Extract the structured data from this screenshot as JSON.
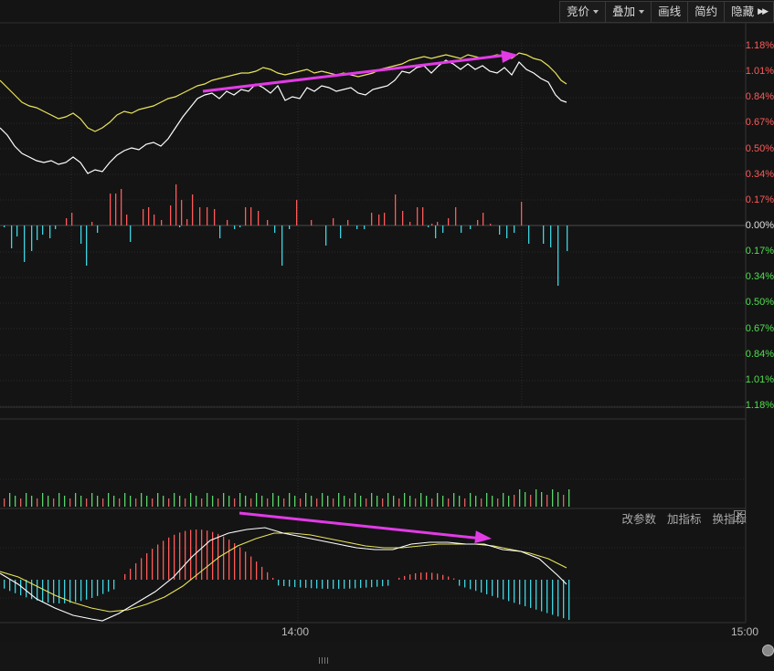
{
  "toolbar": {
    "bid_price": "竞价",
    "overlay": "叠加",
    "draw_line": "画线",
    "simple": "简约",
    "hide": "隐藏"
  },
  "y_axis_labels": {
    "up": [
      "1.18%",
      "1.01%",
      "0.84%",
      "0.67%",
      "0.50%",
      "0.34%",
      "0.17%"
    ],
    "zero": "0.00%",
    "down": [
      "0.17%",
      "0.34%",
      "0.50%",
      "0.67%",
      "0.84%",
      "1.01%",
      "1.18%"
    ]
  },
  "indicator_bar": {
    "change_params": "改参数",
    "add_indicator": "加指标",
    "switch_indicator": "换指标",
    "close": "✕"
  },
  "x_axis_labels": [
    "14:00",
    "15:00"
  ],
  "colors": {
    "up": "#ff5a5a",
    "down": "#3fd3e0",
    "volume_up": "#e06060",
    "volume_down": "#5bd36a",
    "price_line": "#ffffff",
    "avg_line": "#e8e45a",
    "annotation_arrow": "#e23be6"
  }
}
